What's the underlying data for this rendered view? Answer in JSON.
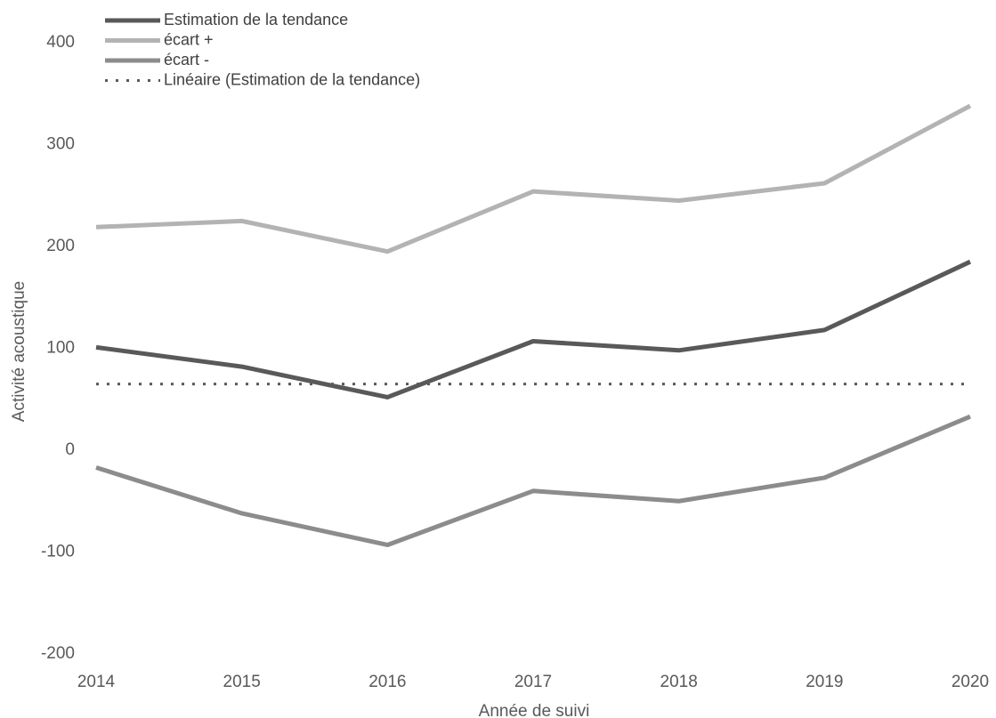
{
  "chart_data": {
    "type": "line",
    "x_label": "Année de suivi",
    "y_label": "Activité acoustique",
    "categories": [
      "2014",
      "2015",
      "2016",
      "2017",
      "2018",
      "2019",
      "2020"
    ],
    "series": [
      {
        "name": "Estimation de la tendance",
        "color": "#595959",
        "line_style": "solid",
        "values": [
          101,
          82,
          52,
          107,
          98,
          118,
          185
        ]
      },
      {
        "name": "écart +",
        "color": "#b3b3b3",
        "line_style": "solid",
        "values": [
          219,
          225,
          195,
          254,
          245,
          262,
          338
        ]
      },
      {
        "name": "écart -",
        "color": "#8c8c8c",
        "line_style": "solid",
        "values": [
          -17,
          -62,
          -93,
          -40,
          -50,
          -27,
          33
        ]
      },
      {
        "name": "Linéaire (Estimation de la tendance)",
        "color": "#595959",
        "line_style": "dotted",
        "values": [
          65,
          65,
          65,
          65,
          65,
          65,
          65
        ]
      }
    ],
    "ylim": [
      -200,
      400
    ],
    "yticks": [
      -200,
      -100,
      0,
      100,
      200,
      300,
      400
    ],
    "grid": false,
    "legend": "top-left"
  }
}
